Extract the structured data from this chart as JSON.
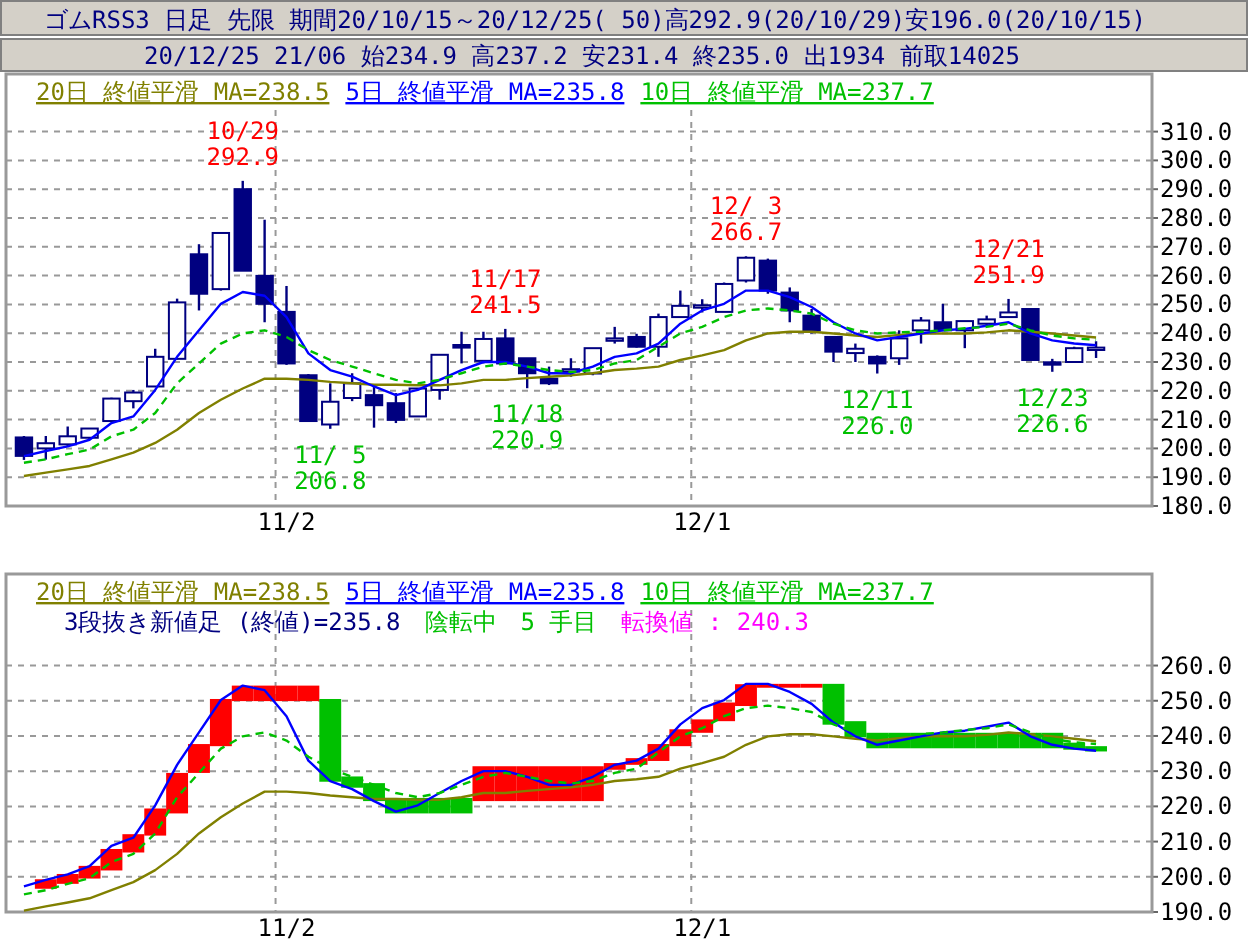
{
  "chart_data": [
    {
      "type": "candlestick",
      "title": "ゴムRSS3 日足 先限 期間20/10/15～20/12/25( 50)高292.9(20/10/29)安196.0(20/10/15)",
      "subtitle": "20/12/25 21/06 始234.9 高237.2 安231.4 終235.0 出1934 前取14025",
      "color": "#000080",
      "categories": [
        null,
        null,
        null,
        null,
        null,
        null,
        null,
        null,
        null,
        null,
        null,
        null,
        "11/2",
        null,
        null,
        null,
        null,
        null,
        null,
        null,
        null,
        null,
        null,
        null,
        null,
        null,
        null,
        null,
        null,
        null,
        null,
        "12/1",
        null,
        null,
        null,
        null,
        null,
        null,
        null,
        null,
        null,
        null,
        null,
        null,
        null,
        null,
        null,
        null,
        null,
        null
      ],
      "ohlc": [
        [
          203.8,
          204.3,
          196.0,
          197.4
        ],
        [
          200.0,
          204.3,
          196.1,
          201.8
        ],
        [
          201.4,
          207.6,
          200.7,
          204.2
        ],
        [
          203.7,
          206.9,
          203.0,
          206.9
        ],
        [
          209.5,
          217.6,
          209.3,
          217.3
        ],
        [
          216.4,
          220.3,
          213.9,
          219.4
        ],
        [
          221.5,
          234.6,
          221.3,
          231.8
        ],
        [
          231.1,
          252.0,
          230.9,
          250.7
        ],
        [
          267.4,
          270.9,
          247.9,
          253.7
        ],
        [
          255.3,
          274.8,
          254.8,
          274.8
        ],
        [
          290.0,
          292.9,
          261.7,
          261.7
        ],
        [
          259.9,
          279.4,
          243.8,
          250.2
        ],
        [
          247.4,
          256.4,
          229.0,
          229.5
        ],
        [
          225.4,
          225.8,
          209.5,
          209.5
        ],
        [
          208.3,
          222.6,
          206.8,
          216.2
        ],
        [
          217.5,
          226.1,
          216.4,
          222.6
        ],
        [
          218.5,
          221.5,
          207.2,
          215.0
        ],
        [
          215.7,
          219.2,
          208.8,
          209.9
        ],
        [
          211.1,
          220.8,
          211.1,
          220.8
        ],
        [
          220.3,
          232.5,
          216.9,
          232.5
        ],
        [
          235.9,
          240.5,
          229.5,
          235.0
        ],
        [
          230.4,
          240.5,
          229.5,
          238.0
        ],
        [
          238.2,
          241.5,
          229.0,
          229.5
        ],
        [
          231.3,
          231.3,
          220.9,
          226.1
        ],
        [
          224.2,
          228.4,
          222.0,
          222.6
        ],
        [
          227.2,
          231.3,
          224.9,
          227.5
        ],
        [
          226.0,
          234.8,
          225.4,
          234.8
        ],
        [
          237.8,
          242.2,
          236.4,
          238.2
        ],
        [
          238.7,
          239.8,
          235.0,
          235.3
        ],
        [
          235.3,
          246.8,
          231.8,
          245.6
        ],
        [
          245.6,
          254.8,
          245.6,
          249.5
        ],
        [
          249.3,
          251.8,
          247.2,
          249.7
        ],
        [
          247.4,
          257.6,
          247.4,
          257.1
        ],
        [
          258.3,
          266.7,
          257.6,
          266.2
        ],
        [
          265.2,
          265.9,
          253.7,
          254.8
        ],
        [
          254.1,
          255.9,
          243.8,
          247.9
        ],
        [
          246.1,
          248.4,
          239.9,
          241.0
        ],
        [
          238.7,
          238.7,
          230.0,
          233.6
        ],
        [
          233.1,
          236.4,
          230.0,
          234.6
        ],
        [
          231.8,
          232.3,
          226.0,
          229.5
        ],
        [
          231.3,
          241.0,
          229.0,
          238.2
        ],
        [
          241.0,
          245.6,
          236.4,
          244.4
        ],
        [
          243.8,
          250.2,
          241.0,
          241.0
        ],
        [
          241.0,
          244.2,
          234.8,
          244.2
        ],
        [
          243.3,
          246.1,
          242.2,
          244.8
        ],
        [
          245.6,
          251.9,
          245.6,
          247.2
        ],
        [
          248.4,
          248.4,
          230.7,
          230.7
        ],
        [
          229.9,
          231.1,
          226.6,
          229.5
        ],
        [
          230.0,
          235.3,
          230.0,
          234.8
        ],
        [
          234.9,
          237.2,
          231.4,
          235.0
        ]
      ],
      "series": [
        {
          "name": "20日 終値平滑 MA=238.5",
          "type": "line",
          "color": "#808000",
          "values": [
            190.4,
            191.6,
            192.7,
            193.9,
            196.2,
            198.5,
            201.9,
            206.5,
            212.3,
            216.9,
            220.8,
            224.2,
            224.2,
            223.8,
            223.1,
            222.6,
            222.1,
            222.1,
            221.9,
            221.9,
            222.6,
            223.8,
            223.8,
            224.4,
            224.9,
            225.4,
            226.1,
            227.2,
            227.7,
            228.4,
            230.7,
            232.3,
            234.1,
            237.5,
            239.9,
            240.5,
            240.5,
            239.9,
            239.2,
            238.7,
            239.4,
            239.9,
            239.9,
            239.9,
            240.3,
            241.0,
            240.5,
            239.9,
            239.2,
            238.5
          ]
        },
        {
          "name": "5日 終値平滑 MA=235.8",
          "type": "line",
          "color": "#0000ff",
          "values": [
            197.3,
            199.1,
            200.7,
            203.0,
            208.8,
            211.1,
            220.3,
            231.8,
            241.0,
            250.2,
            254.3,
            253.0,
            245.6,
            233.0,
            227.2,
            224.9,
            221.5,
            218.5,
            220.3,
            223.8,
            227.2,
            230.0,
            230.0,
            228.4,
            226.1,
            226.1,
            228.4,
            231.8,
            233.0,
            236.4,
            243.3,
            247.9,
            250.2,
            254.8,
            254.8,
            252.5,
            249.1,
            243.8,
            239.9,
            237.5,
            238.7,
            239.9,
            241.0,
            241.5,
            242.6,
            243.8,
            239.9,
            237.5,
            236.4,
            235.8
          ]
        },
        {
          "name": "10日 終値平滑 MA=237.7",
          "type": "line",
          "color": "#00c000",
          "line_style": "dashed",
          "values": [
            195.0,
            196.2,
            198.0,
            199.6,
            204.2,
            206.5,
            212.3,
            222.6,
            229.5,
            236.4,
            239.9,
            241.0,
            238.7,
            234.1,
            230.7,
            228.4,
            226.1,
            223.8,
            222.6,
            223.8,
            226.1,
            228.4,
            229.5,
            228.4,
            227.2,
            226.5,
            227.2,
            229.5,
            230.7,
            235.3,
            239.9,
            242.2,
            245.6,
            247.9,
            248.6,
            247.9,
            246.8,
            243.3,
            241.0,
            239.9,
            240.3,
            240.5,
            241.0,
            241.7,
            242.2,
            243.3,
            241.0,
            239.2,
            238.2,
            237.7
          ]
        }
      ],
      "ylim": [
        180,
        330
      ],
      "yticks": [
        {
          "value": 180,
          "label": "180.0"
        },
        {
          "value": 190,
          "label": "190.0"
        },
        {
          "value": 200,
          "label": "200.0"
        },
        {
          "value": 210,
          "label": "210.0"
        },
        {
          "value": 220,
          "label": "220.0"
        },
        {
          "value": 230,
          "label": "230.0"
        },
        {
          "value": 240,
          "label": "240.0"
        },
        {
          "value": 250,
          "label": "250.0"
        },
        {
          "value": 260,
          "label": "260.0"
        },
        {
          "value": 270,
          "label": "270.0"
        },
        {
          "value": 280,
          "label": "280.0"
        },
        {
          "value": 290,
          "label": "290.0"
        },
        {
          "value": 300,
          "label": "300.0"
        },
        {
          "value": 310,
          "label": "310.0"
        }
      ],
      "grid": true,
      "legend": "top left",
      "annotations": [
        {
          "text": "10/29\n292.9",
          "y": 292.9
        },
        {
          "text": "11/ 5\n206.8",
          "y": 206.8
        },
        {
          "text": "11/17\n241.5",
          "y": 241.5
        },
        {
          "text": "11/18\n220.9",
          "y": 220.9
        },
        {
          "text": "12/ 3\n266.7",
          "y": 266.7
        },
        {
          "text": "12/11\n226.0",
          "y": 226.0
        },
        {
          "text": "12/21\n251.9",
          "y": 251.9
        },
        {
          "text": "12/23\n226.6",
          "y": 226.6
        }
      ]
    },
    {
      "type": "bar",
      "categories": [
        null,
        null,
        null,
        null,
        null,
        null,
        null,
        null,
        null,
        null,
        null,
        null,
        "11/2",
        null,
        null,
        null,
        null,
        null,
        null,
        null,
        null,
        null,
        null,
        null,
        null,
        null,
        null,
        null,
        null,
        null,
        null,
        "12/1",
        null,
        null,
        null,
        null,
        null,
        null,
        null,
        null,
        null,
        null,
        null,
        null,
        null,
        null,
        null,
        null,
        null,
        null
      ],
      "series": [
        {
          "type": "bar",
          "base": [
            null,
            196.6,
            198.0,
            199.5,
            201.8,
            206.9,
            211.7,
            218.0,
            229.5,
            237.1,
            249.9,
            249.9,
            249.9,
            249.9,
            227.0,
            225.3,
            221.5,
            218.0,
            218.0,
            218.0,
            218.0,
            221.5,
            221.5,
            221.5,
            221.5,
            221.5,
            221.5,
            230.4,
            231.8,
            232.9,
            237.1,
            240.9,
            244.2,
            248.5,
            253.7,
            253.7,
            253.7,
            243.2,
            239.6,
            236.5,
            236.5,
            236.5,
            236.5,
            236.5,
            236.5,
            236.5,
            236.5,
            236.5,
            236.1,
            235.6
          ],
          "values": [
            null,
            2.7,
            2.8,
            3.6,
            6.1,
            5.2,
            7.7,
            11.5,
            8.2,
            13.4,
            4.4,
            4.4,
            4.4,
            4.4,
            23.5,
            3.2,
            5.1,
            4.4,
            4.4,
            4.4,
            4.4,
            9.9,
            9.9,
            9.9,
            9.9,
            9.9,
            9.9,
            1.9,
            1.9,
            4.8,
            4.8,
            3.8,
            5.3,
            6.2,
            1.1,
            1.1,
            1.1,
            11.6,
            4.6,
            4.4,
            4.4,
            4.4,
            4.4,
            4.4,
            4.4,
            4.4,
            4.4,
            4.4,
            2.0,
            1.5
          ],
          "colors": [
            null,
            "#ff0000",
            "#ff0000",
            "#ff0000",
            "#ff0000",
            "#ff0000",
            "#ff0000",
            "#ff0000",
            "#ff0000",
            "#ff0000",
            "#ff0000",
            "#ff0000",
            "#ff0000",
            "#ff0000",
            "#00c000",
            "#00c000",
            "#00c000",
            "#00c000",
            "#00c000",
            "#00c000",
            "#00c000",
            "#ff0000",
            "#ff0000",
            "#ff0000",
            "#ff0000",
            "#ff0000",
            "#ff0000",
            "#ff0000",
            "#ff0000",
            "#ff0000",
            "#ff0000",
            "#ff0000",
            "#ff0000",
            "#ff0000",
            "#ff0000",
            "#ff0000",
            "#ff0000",
            "#00c000",
            "#00c000",
            "#00c000",
            "#00c000",
            "#00c000",
            "#00c000",
            "#00c000",
            "#00c000",
            "#00c000",
            "#00c000",
            "#00c000",
            "#00c000",
            "#00c000"
          ]
        },
        {
          "name": "20日 終値平滑 MA=238.5",
          "type": "line",
          "color": "#808000",
          "values": [
            190.4,
            191.6,
            192.7,
            193.9,
            196.2,
            198.5,
            201.9,
            206.5,
            212.3,
            216.9,
            220.8,
            224.2,
            224.2,
            223.8,
            223.1,
            222.6,
            222.1,
            222.1,
            221.9,
            221.9,
            222.6,
            223.8,
            223.8,
            224.4,
            224.9,
            225.4,
            226.1,
            227.2,
            227.7,
            228.4,
            230.7,
            232.3,
            234.1,
            237.5,
            239.9,
            240.5,
            240.5,
            239.9,
            239.2,
            238.7,
            239.4,
            239.9,
            239.9,
            239.9,
            240.3,
            241.0,
            240.5,
            239.9,
            239.2,
            238.5
          ]
        },
        {
          "name": "5日 終値平滑 MA=235.8",
          "type": "line",
          "color": "#0000ff",
          "values": [
            197.3,
            199.1,
            200.7,
            203.0,
            208.8,
            211.1,
            220.3,
            231.8,
            241.0,
            250.2,
            254.3,
            253.0,
            245.6,
            233.0,
            227.2,
            224.9,
            221.5,
            218.5,
            220.3,
            223.8,
            227.2,
            230.0,
            230.0,
            228.4,
            226.1,
            226.1,
            228.4,
            231.8,
            233.0,
            236.4,
            243.3,
            247.9,
            250.2,
            254.8,
            254.8,
            252.5,
            249.1,
            243.8,
            239.9,
            237.5,
            238.7,
            239.9,
            241.0,
            241.5,
            242.6,
            243.8,
            239.9,
            237.5,
            236.4,
            235.8
          ]
        },
        {
          "name": "10日 終値平滑 MA=237.7",
          "type": "line",
          "color": "#00c000",
          "line_style": "dashed",
          "values": [
            195.0,
            196.2,
            198.0,
            199.6,
            204.2,
            206.5,
            212.3,
            222.6,
            229.5,
            236.4,
            239.9,
            241.0,
            238.7,
            234.1,
            230.7,
            228.4,
            226.1,
            223.8,
            222.6,
            223.8,
            226.1,
            228.4,
            229.5,
            228.4,
            227.2,
            226.5,
            227.2,
            229.5,
            230.7,
            235.3,
            239.9,
            242.2,
            245.6,
            247.9,
            248.6,
            247.9,
            246.8,
            243.3,
            241.0,
            239.9,
            240.3,
            240.5,
            241.0,
            241.7,
            242.2,
            243.3,
            241.0,
            239.2,
            238.2,
            237.7
          ]
        }
      ],
      "ylim": [
        190,
        286
      ],
      "yticks": [
        {
          "value": 190,
          "label": "190.0"
        },
        {
          "value": 200,
          "label": "200.0"
        },
        {
          "value": 210,
          "label": "210.0"
        },
        {
          "value": 220,
          "label": "220.0"
        },
        {
          "value": 230,
          "label": "230.0"
        },
        {
          "value": 240,
          "label": "240.0"
        },
        {
          "value": 250,
          "label": "250.0"
        },
        {
          "value": 260,
          "label": "260.0"
        }
      ],
      "grid": true,
      "legend": "top left",
      "annotations": [
        "3段抜き新値足 (終値)=235.8",
        "陰転中",
        "5 手目",
        "転換値 : 240.3"
      ]
    }
  ]
}
